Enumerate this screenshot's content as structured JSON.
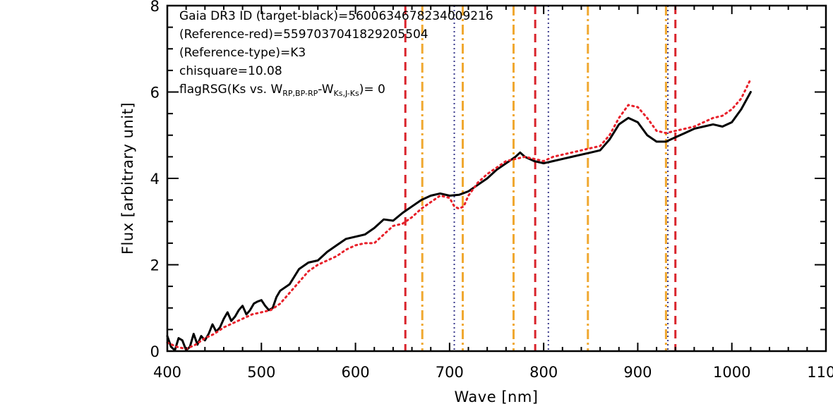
{
  "chart_data": {
    "type": "line",
    "title": "",
    "xlabel": "Wave [nm]",
    "ylabel": "Flux [arbitrary unit]",
    "xlim": [
      400,
      1100
    ],
    "ylim": [
      0,
      8
    ],
    "x_ticks": [
      400,
      500,
      600,
      700,
      800,
      900,
      1000,
      1100
    ],
    "y_ticks": [
      0,
      2,
      4,
      6,
      8
    ],
    "x_tick_labels": [
      "400",
      "500",
      "600",
      "700",
      "800",
      "900",
      "1000",
      "1100"
    ],
    "y_tick_labels": [
      "0",
      "2",
      "4",
      "6",
      "8"
    ],
    "grid": false,
    "legend": null,
    "annotations": {
      "line1": "Gaia DR3 ID (target-black)=5600634678234009216",
      "line2": "(Reference-red)=5597037041829205504",
      "line3": "(Reference-type)=K3",
      "line4": "chisquare=10.08",
      "line5_prefix": "flagRSG(Ks vs. W",
      "line5_sub1": "RP,BP-RP",
      "line5_mid": "-W",
      "line5_sub2": "Ks,J-Ks",
      "line5_suffix": ")= 0"
    },
    "series": [
      {
        "color": "#000000",
        "style": "solid",
        "x": [
          400,
          404,
          408,
          412,
          416,
          420,
          424,
          428,
          432,
          436,
          440,
          444,
          448,
          452,
          456,
          460,
          464,
          468,
          472,
          476,
          480,
          484,
          488,
          492,
          496,
          500,
          504,
          508,
          512,
          516,
          520,
          530,
          540,
          550,
          560,
          570,
          580,
          590,
          600,
          610,
          620,
          630,
          640,
          650,
          660,
          670,
          680,
          690,
          700,
          710,
          720,
          730,
          740,
          750,
          760,
          770,
          775,
          780,
          790,
          800,
          810,
          820,
          830,
          840,
          850,
          860,
          870,
          880,
          890,
          900,
          910,
          920,
          930,
          940,
          950,
          960,
          970,
          980,
          990,
          1000,
          1010,
          1020
        ],
        "y": [
          0.35,
          0.1,
          0.02,
          0.3,
          0.25,
          0.02,
          0.1,
          0.4,
          0.15,
          0.35,
          0.25,
          0.4,
          0.62,
          0.45,
          0.55,
          0.75,
          0.9,
          0.7,
          0.8,
          0.95,
          1.05,
          0.85,
          0.95,
          1.1,
          1.15,
          1.18,
          1.05,
          0.95,
          1.0,
          1.25,
          1.4,
          1.55,
          1.9,
          2.05,
          2.1,
          2.3,
          2.45,
          2.6,
          2.65,
          2.7,
          2.85,
          3.05,
          3.02,
          3.2,
          3.35,
          3.5,
          3.6,
          3.65,
          3.6,
          3.62,
          3.7,
          3.85,
          4.0,
          4.2,
          4.35,
          4.5,
          4.6,
          4.5,
          4.4,
          4.35,
          4.4,
          4.45,
          4.5,
          4.55,
          4.6,
          4.65,
          4.9,
          5.25,
          5.4,
          5.3,
          5.0,
          4.85,
          4.85,
          4.95,
          5.05,
          5.15,
          5.2,
          5.25,
          5.2,
          5.3,
          5.6,
          6.0
        ]
      },
      {
        "color": "#e8202a",
        "style": "dotted",
        "x": [
          400,
          410,
          420,
          430,
          440,
          450,
          460,
          470,
          480,
          490,
          500,
          510,
          520,
          530,
          540,
          550,
          560,
          570,
          580,
          590,
          600,
          610,
          620,
          630,
          640,
          650,
          660,
          670,
          680,
          690,
          700,
          705,
          710,
          715,
          720,
          730,
          740,
          750,
          760,
          770,
          780,
          790,
          800,
          810,
          820,
          830,
          840,
          850,
          860,
          870,
          880,
          890,
          900,
          910,
          920,
          930,
          940,
          950,
          960,
          970,
          980,
          990,
          1000,
          1010,
          1020
        ],
        "y": [
          0.2,
          0.1,
          0.05,
          0.15,
          0.3,
          0.4,
          0.55,
          0.65,
          0.75,
          0.85,
          0.9,
          0.95,
          1.1,
          1.35,
          1.6,
          1.85,
          2.0,
          2.1,
          2.2,
          2.35,
          2.45,
          2.5,
          2.5,
          2.7,
          2.9,
          2.95,
          3.1,
          3.3,
          3.45,
          3.6,
          3.55,
          3.35,
          3.3,
          3.35,
          3.6,
          3.9,
          4.1,
          4.25,
          4.4,
          4.45,
          4.5,
          4.45,
          4.4,
          4.5,
          4.55,
          4.6,
          4.65,
          4.7,
          4.75,
          5.0,
          5.4,
          5.7,
          5.65,
          5.4,
          5.1,
          5.05,
          5.1,
          5.15,
          5.2,
          5.3,
          5.4,
          5.45,
          5.6,
          5.85,
          6.3
        ]
      }
    ],
    "vlines": [
      {
        "x": 653,
        "color": "#d9242c",
        "style": "dashed"
      },
      {
        "x": 671,
        "color": "#f0a830",
        "style": "dashdot"
      },
      {
        "x": 705,
        "color": "#3a3a8c",
        "style": "dotted"
      },
      {
        "x": 714,
        "color": "#f0a830",
        "style": "dashdot"
      },
      {
        "x": 768,
        "color": "#f0a830",
        "style": "dashdot"
      },
      {
        "x": 791,
        "color": "#d9242c",
        "style": "dashed"
      },
      {
        "x": 805,
        "color": "#3a3a8c",
        "style": "dotted"
      },
      {
        "x": 847,
        "color": "#f0a830",
        "style": "dashdot"
      },
      {
        "x": 930,
        "color": "#f0a830",
        "style": "dashdot"
      },
      {
        "x": 932,
        "color": "#3a3a8c",
        "style": "dotted"
      },
      {
        "x": 940,
        "color": "#d9242c",
        "style": "dashed"
      }
    ]
  }
}
